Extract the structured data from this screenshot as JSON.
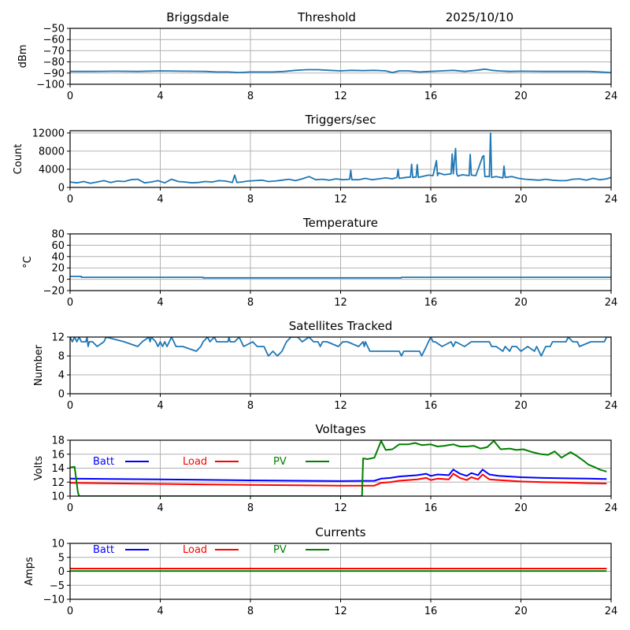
{
  "header": {
    "site": "Briggsdale",
    "mode": "Threshold",
    "date": "2025/10/10"
  },
  "colors": {
    "series": "#1f77b4",
    "batt": "#0000ff",
    "load": "#ff0000",
    "pv": "#008000",
    "grid": "#b0b0b0"
  },
  "chart_data": [
    {
      "id": "signal",
      "type": "line",
      "title": "",
      "xlabel": "",
      "ylabel": "dBm",
      "xlim": [
        0,
        24
      ],
      "ylim": [
        -100,
        -50
      ],
      "xticks": [
        0,
        4,
        8,
        12,
        16,
        20,
        24
      ],
      "yticks": [
        -100,
        -90,
        -80,
        -70,
        -60,
        -50
      ],
      "ytick_labels": [
        "−100",
        "−90",
        "−80",
        "−70",
        "−60",
        "−50"
      ],
      "grid": true,
      "series": [
        {
          "name": "signal",
          "color": "#1f77b4",
          "x": [
            0,
            1,
            2,
            3,
            4,
            5,
            6,
            6.5,
            7,
            7.5,
            8,
            9,
            9.5,
            10,
            10.5,
            11,
            11.5,
            12,
            12.5,
            13,
            13.5,
            14,
            14.3,
            14.6,
            15,
            15.5,
            16,
            16.5,
            17,
            17.5,
            18,
            18.4,
            18.7,
            19,
            19.5,
            20,
            21,
            22,
            23,
            23.5,
            24
          ],
          "y": [
            -88.5,
            -88.5,
            -88.3,
            -88.5,
            -88,
            -88.3,
            -88.5,
            -89,
            -89,
            -89.5,
            -89,
            -89,
            -88.5,
            -87.5,
            -87,
            -87,
            -87.5,
            -88,
            -87.5,
            -87.8,
            -87.5,
            -88,
            -89.5,
            -88,
            -88,
            -89,
            -88.5,
            -88,
            -87.5,
            -88.5,
            -87.5,
            -86.5,
            -87.5,
            -88,
            -88.5,
            -88.3,
            -88.5,
            -88.5,
            -88.5,
            -89,
            -89.5
          ]
        }
      ]
    },
    {
      "id": "triggers",
      "type": "line",
      "title": "Triggers/sec",
      "xlabel": "",
      "ylabel": "Count",
      "xlim": [
        0,
        24
      ],
      "ylim": [
        0,
        12500
      ],
      "xticks": [
        0,
        4,
        8,
        12,
        16,
        20,
        24
      ],
      "yticks": [
        0,
        4000,
        8000,
        12000
      ],
      "ytick_labels": [
        "0",
        "4000",
        "8000",
        "12000"
      ],
      "grid": true,
      "series": [
        {
          "name": "triggers",
          "color": "#1f77b4",
          "x": [
            0,
            0.3,
            0.6,
            0.9,
            1.2,
            1.5,
            1.8,
            2.1,
            2.4,
            2.7,
            3.0,
            3.3,
            3.6,
            3.9,
            4.2,
            4.5,
            4.8,
            5.1,
            5.4,
            5.7,
            6.0,
            6.3,
            6.6,
            6.9,
            7.2,
            7.3,
            7.4,
            7.6,
            7.9,
            8.2,
            8.5,
            8.8,
            9.1,
            9.4,
            9.7,
            10.0,
            10.3,
            10.6,
            10.9,
            11.2,
            11.5,
            11.8,
            12.1,
            12.4,
            12.45,
            12.5,
            12.8,
            13.1,
            13.4,
            13.7,
            14.0,
            14.3,
            14.5,
            14.55,
            14.6,
            14.9,
            15.1,
            15.15,
            15.2,
            15.35,
            15.4,
            15.45,
            15.7,
            15.9,
            16.1,
            16.25,
            16.3,
            16.35,
            16.6,
            16.9,
            16.95,
            17.0,
            17.1,
            17.15,
            17.2,
            17.4,
            17.7,
            17.75,
            17.8,
            18.0,
            18.3,
            18.35,
            18.4,
            18.6,
            18.65,
            18.7,
            18.9,
            19.2,
            19.25,
            19.3,
            19.6,
            19.9,
            20.2,
            20.5,
            20.8,
            21.1,
            21.4,
            21.7,
            22.0,
            22.3,
            22.6,
            22.9,
            23.2,
            23.5,
            23.8,
            24
          ],
          "y": [
            1200,
            1000,
            1300,
            900,
            1200,
            1500,
            1100,
            1400,
            1300,
            1700,
            1800,
            1000,
            1200,
            1500,
            1000,
            1800,
            1300,
            1200,
            1000,
            1100,
            1300,
            1200,
            1500,
            1400,
            1100,
            2700,
            1100,
            1200,
            1400,
            1500,
            1600,
            1300,
            1400,
            1600,
            1800,
            1500,
            1900,
            2400,
            1700,
            1800,
            1600,
            1900,
            1700,
            1800,
            3800,
            1700,
            1700,
            2000,
            1700,
            1900,
            2100,
            1900,
            2200,
            4000,
            2000,
            2200,
            2300,
            5100,
            2200,
            2300,
            5000,
            2200,
            2500,
            2700,
            2600,
            5900,
            2600,
            3200,
            2800,
            3000,
            7400,
            3000,
            8600,
            3000,
            2500,
            2800,
            2600,
            7300,
            2700,
            2600,
            6800,
            7000,
            2400,
            2400,
            12000,
            2200,
            2400,
            2100,
            4700,
            2200,
            2400,
            2000,
            1800,
            1700,
            1600,
            1800,
            1600,
            1500,
            1500,
            1800,
            1900,
            1600,
            2000,
            1700,
            1900,
            2200
          ]
        }
      ]
    },
    {
      "id": "temperature",
      "type": "line",
      "title": "Temperature",
      "xlabel": "",
      "ylabel": "°C",
      "xlim": [
        0,
        24
      ],
      "ylim": [
        -20,
        80
      ],
      "xticks": [
        0,
        4,
        8,
        12,
        16,
        20,
        24
      ],
      "yticks": [
        -20,
        0,
        20,
        40,
        60,
        80
      ],
      "ytick_labels": [
        "−20",
        "0",
        "20",
        "40",
        "60",
        "80"
      ],
      "grid": true,
      "series": [
        {
          "name": "temperature",
          "color": "#1f77b4",
          "x": [
            0,
            0.5,
            0.5,
            5.9,
            5.9,
            14.7,
            14.7,
            24
          ],
          "y": [
            5,
            5,
            3.5,
            3.5,
            2.5,
            2.5,
            3.5,
            3.5
          ]
        }
      ]
    },
    {
      "id": "satellites",
      "type": "line",
      "title": "Satellites Tracked",
      "xlabel": "",
      "ylabel": "Number",
      "xlim": [
        0,
        24
      ],
      "ylim": [
        0,
        12
      ],
      "xticks": [
        0,
        4,
        8,
        12,
        16,
        20,
        24
      ],
      "yticks": [
        0,
        4,
        8,
        12
      ],
      "ytick_labels": [
        "0",
        "4",
        "8",
        "12"
      ],
      "grid": true,
      "series": [
        {
          "name": "satellites",
          "color": "#1f77b4",
          "x": [
            0,
            0.1,
            0.2,
            0.3,
            0.4,
            0.5,
            0.7,
            0.75,
            0.8,
            0.85,
            1.0,
            1.2,
            1.5,
            1.6,
            2.4,
            3.0,
            3.2,
            3.5,
            3.55,
            3.6,
            3.8,
            3.9,
            4.0,
            4.1,
            4.2,
            4.3,
            4.4,
            4.5,
            4.6,
            4.7,
            5.0,
            5.6,
            5.8,
            5.9,
            6.1,
            6.2,
            6.4,
            6.5,
            7.0,
            7.05,
            7.1,
            7.3,
            7.5,
            7.6,
            7.7,
            8.1,
            8.3,
            8.6,
            8.7,
            8.8,
            9.0,
            9.2,
            9.4,
            9.5,
            9.6,
            9.8,
            10.1,
            10.3,
            10.6,
            10.8,
            11.0,
            11.1,
            11.2,
            11.4,
            11.9,
            12.1,
            12.3,
            12.8,
            13.0,
            13.05,
            13.1,
            13.2,
            13.3,
            13.5,
            14.0,
            14.6,
            14.7,
            14.8,
            15.5,
            15.6,
            15.7,
            15.8,
            15.9,
            16.0,
            16.1,
            16.2,
            16.5,
            16.9,
            17.0,
            17.1,
            17.5,
            17.8,
            18.6,
            18.7,
            18.9,
            19.2,
            19.3,
            19.5,
            19.6,
            19.8,
            20.0,
            20.3,
            20.6,
            20.7,
            20.9,
            21.0,
            21.1,
            21.3,
            21.4,
            22.0,
            22.1,
            22.3,
            22.5,
            22.6,
            23.1,
            23.4,
            23.7,
            23.8,
            24
          ],
          "y": [
            12,
            11,
            12,
            11,
            12,
            11,
            11,
            12,
            10,
            11,
            11,
            10,
            11,
            12,
            11,
            10,
            11,
            12,
            11,
            12,
            11,
            10,
            11,
            10,
            11,
            10,
            11,
            12,
            11,
            10,
            10,
            9,
            10,
            11,
            12,
            11,
            12,
            11,
            11,
            12,
            11,
            11,
            12,
            11,
            10,
            11,
            10,
            10,
            9,
            8,
            9,
            8,
            9,
            10,
            11,
            12,
            12,
            11,
            12,
            11,
            11,
            10,
            11,
            11,
            10,
            11,
            11,
            10,
            11,
            10,
            11,
            10,
            9,
            9,
            9,
            9,
            8,
            9,
            9,
            8,
            9,
            10,
            11,
            12,
            11,
            11,
            10,
            11,
            10,
            11,
            10,
            11,
            11,
            10,
            10,
            9,
            10,
            9,
            10,
            10,
            9,
            10,
            9,
            10,
            8,
            9,
            10,
            10,
            11,
            11,
            12,
            11,
            11,
            10,
            11,
            11,
            11,
            12,
            12
          ]
        }
      ]
    },
    {
      "id": "voltages",
      "type": "line",
      "title": "Voltages",
      "xlabel": "",
      "ylabel": "Volts",
      "xlim": [
        0,
        24
      ],
      "ylim": [
        10,
        18
      ],
      "xticks": [
        0,
        4,
        8,
        12,
        16,
        20,
        24
      ],
      "yticks": [
        10,
        12,
        14,
        16,
        18
      ],
      "ytick_labels": [
        "10",
        "12",
        "14",
        "16",
        "18"
      ],
      "grid": true,
      "legend": {
        "placement": "top-left",
        "entries": [
          "Batt",
          "Load",
          "PV"
        ]
      },
      "series": [
        {
          "name": "Batt",
          "color": "#0000ff",
          "x": [
            0,
            4,
            8,
            12,
            13.5,
            13.8,
            14.2,
            14.6,
            15.0,
            15.4,
            15.8,
            16.0,
            16.3,
            16.8,
            17.0,
            17.3,
            17.6,
            17.8,
            18.1,
            18.3,
            18.6,
            19.0,
            20,
            21,
            22,
            23,
            23.8
          ],
          "y": [
            12.5,
            12.4,
            12.25,
            12.15,
            12.2,
            12.5,
            12.6,
            12.8,
            12.9,
            13.0,
            13.2,
            12.9,
            13.1,
            13.0,
            13.8,
            13.2,
            12.9,
            13.3,
            13.0,
            13.8,
            13.1,
            12.9,
            12.7,
            12.6,
            12.55,
            12.5,
            12.45
          ]
        },
        {
          "name": "Load",
          "color": "#ff0000",
          "x": [
            0,
            4,
            8,
            12,
            13.5,
            13.8,
            14.2,
            14.6,
            15.0,
            15.4,
            15.8,
            16.0,
            16.3,
            16.8,
            17.0,
            17.3,
            17.6,
            17.8,
            18.1,
            18.3,
            18.6,
            19.0,
            20,
            21,
            22,
            23,
            23.8
          ],
          "y": [
            11.9,
            11.75,
            11.6,
            11.5,
            11.5,
            11.9,
            12.0,
            12.2,
            12.3,
            12.4,
            12.6,
            12.3,
            12.5,
            12.4,
            13.2,
            12.6,
            12.3,
            12.7,
            12.4,
            13.1,
            12.4,
            12.3,
            12.1,
            12.0,
            11.95,
            11.85,
            11.8
          ]
        },
        {
          "name": "PV",
          "color": "#008000",
          "x": [
            0,
            0.2,
            0.35,
            0.4,
            12.95,
            13.0,
            13.2,
            13.5,
            13.8,
            14.0,
            14.3,
            14.6,
            15.0,
            15.3,
            15.6,
            16.0,
            16.3,
            16.6,
            17.0,
            17.3,
            17.6,
            17.9,
            18.2,
            18.5,
            18.8,
            19.1,
            19.5,
            19.8,
            20.1,
            20.5,
            20.9,
            21.2,
            21.5,
            21.8,
            22.2,
            22.5,
            22.8,
            23.0,
            23.3,
            23.5,
            23.8
          ],
          "y": [
            14.1,
            14.2,
            10.5,
            10,
            10,
            15.4,
            15.3,
            15.5,
            17.9,
            16.6,
            16.7,
            17.4,
            17.4,
            17.6,
            17.3,
            17.4,
            17.1,
            17.2,
            17.4,
            17.1,
            17.1,
            17.2,
            16.8,
            17.0,
            17.9,
            16.7,
            16.8,
            16.6,
            16.7,
            16.3,
            16.0,
            15.9,
            16.4,
            15.5,
            16.3,
            15.7,
            15.0,
            14.5,
            14.1,
            13.8,
            13.5
          ]
        }
      ]
    },
    {
      "id": "currents",
      "type": "line",
      "title": "Currents",
      "xlabel": "",
      "ylabel": "Amps",
      "xlim": [
        0,
        24
      ],
      "ylim": [
        -10,
        10
      ],
      "xticks": [
        0,
        4,
        8,
        12,
        16,
        20,
        24
      ],
      "yticks": [
        -10,
        -5,
        0,
        5,
        10
      ],
      "ytick_labels": [
        "−10",
        "−5",
        "0",
        "5",
        "10"
      ],
      "grid": true,
      "legend": {
        "placement": "top-left",
        "entries": [
          "Batt",
          "Load",
          "PV"
        ]
      },
      "series": [
        {
          "name": "Batt",
          "color": "#0000ff",
          "x": [
            0,
            23.8
          ],
          "y": [
            1.0,
            1.0
          ]
        },
        {
          "name": "Load",
          "color": "#ff0000",
          "x": [
            0,
            23.8
          ],
          "y": [
            1.0,
            1.0
          ]
        },
        {
          "name": "PV",
          "color": "#008000",
          "x": [
            0,
            23.8
          ],
          "y": [
            0.1,
            0.1
          ]
        }
      ]
    }
  ]
}
